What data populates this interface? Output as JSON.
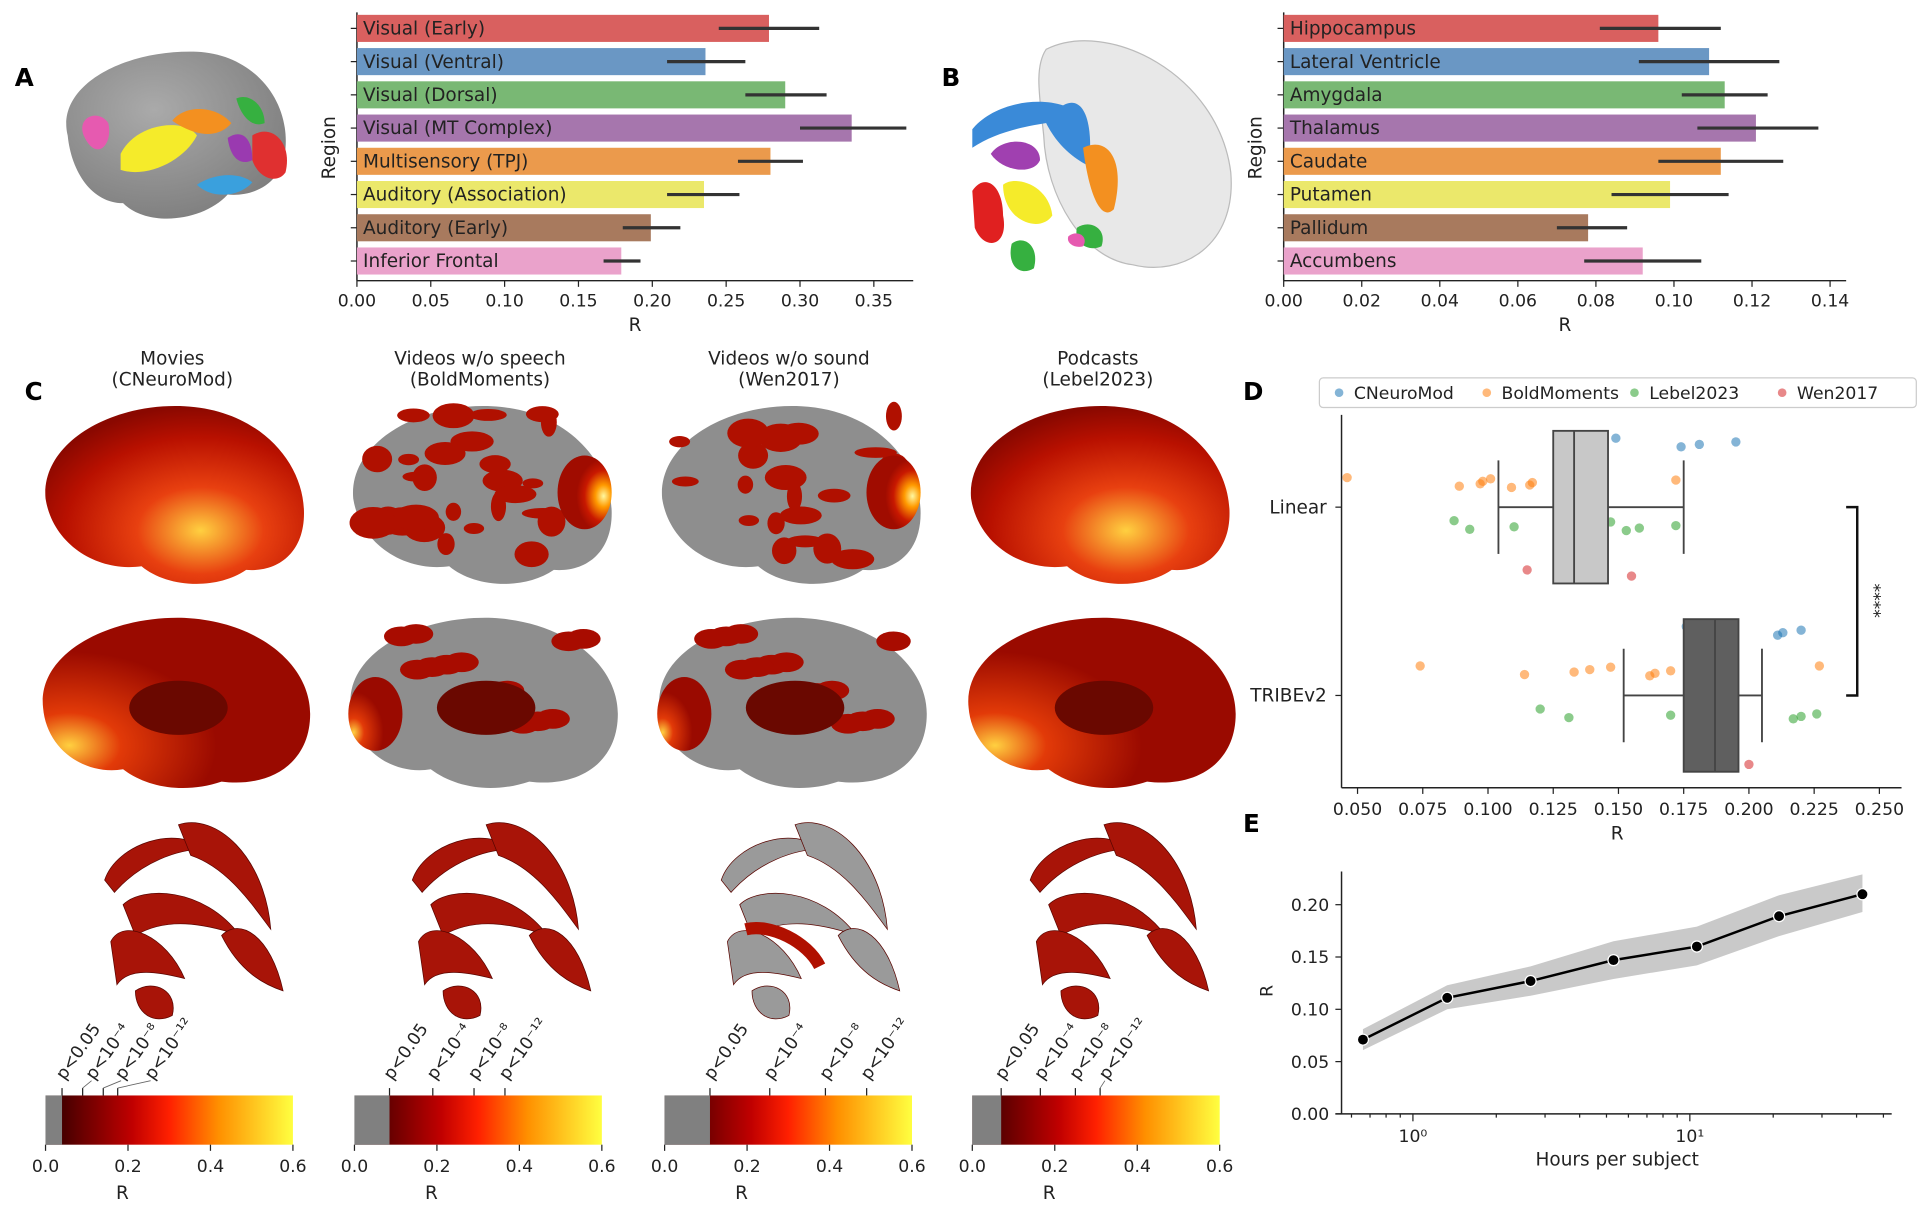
{
  "panels": [
    "A",
    "B",
    "C",
    "D",
    "E"
  ],
  "chart_data": [
    {
      "id": "A",
      "type": "bar",
      "orientation": "horizontal",
      "ylabel": "Region",
      "xlabel": "R",
      "xlim": [
        0,
        0.39
      ],
      "xticks": [
        "0.00",
        "0.05",
        "0.10",
        "0.15",
        "0.20",
        "0.25",
        "0.30",
        "0.35"
      ],
      "categories": [
        "Visual (Early)",
        "Visual (Ventral)",
        "Visual (Dorsal)",
        "Visual (MT Complex)",
        "Multisensory (TPJ)",
        "Auditory (Association)",
        "Auditory (Early)",
        "Inferior Frontal"
      ],
      "values": [
        0.279,
        0.236,
        0.29,
        0.335,
        0.28,
        0.235,
        0.199,
        0.179
      ],
      "error_low": [
        0.245,
        0.21,
        0.263,
        0.3,
        0.258,
        0.21,
        0.18,
        0.167
      ],
      "error_high": [
        0.313,
        0.263,
        0.318,
        0.372,
        0.302,
        0.259,
        0.219,
        0.192
      ],
      "colors": [
        "#d9605f",
        "#6a97c4",
        "#79b874",
        "#a676ad",
        "#eb9a4c",
        "#ebe86b",
        "#a87a5e",
        "#eaa2cb"
      ]
    },
    {
      "id": "B",
      "type": "bar",
      "orientation": "horizontal",
      "ylabel": "Region",
      "xlabel": "R",
      "xlim": [
        0,
        0.144
      ],
      "xticks": [
        "0.00",
        "0.02",
        "0.04",
        "0.06",
        "0.08",
        "0.10",
        "0.12",
        "0.14"
      ],
      "categories": [
        "Hippocampus",
        "Lateral Ventricle",
        "Amygdala",
        "Thalamus",
        "Caudate",
        "Putamen",
        "Pallidum",
        "Accumbens"
      ],
      "values": [
        0.096,
        0.109,
        0.113,
        0.121,
        0.112,
        0.099,
        0.078,
        0.092
      ],
      "error_low": [
        0.081,
        0.091,
        0.102,
        0.106,
        0.096,
        0.084,
        0.07,
        0.077
      ],
      "error_high": [
        0.112,
        0.127,
        0.124,
        0.137,
        0.128,
        0.114,
        0.088,
        0.107
      ],
      "colors": [
        "#d9605f",
        "#6a97c4",
        "#79b874",
        "#a676ad",
        "#eb9a4c",
        "#ebe86b",
        "#a87a5e",
        "#eaa2cb"
      ]
    },
    {
      "id": "C",
      "type": "heatmap",
      "columns": [
        {
          "title1": "Movies",
          "title2": "(CNeuroMod)",
          "thresholds": [
            0.04,
            0.09,
            0.14,
            0.175
          ],
          "coverage": 1.0
        },
        {
          "title1": "Videos w/o speech",
          "title2": "(BoldMoments)",
          "thresholds": [
            0.085,
            0.19,
            0.29,
            0.365
          ],
          "coverage": 0.6
        },
        {
          "title1": "Videos w/o sound",
          "title2": "(Wen2017)",
          "thresholds": [
            0.11,
            0.255,
            0.39,
            0.49
          ],
          "coverage": 0.45
        },
        {
          "title1": "Podcasts",
          "title2": "(Lebel2023)",
          "thresholds": [
            0.07,
            0.165,
            0.25,
            0.31
          ],
          "coverage": 1.0
        }
      ],
      "threshold_labels": [
        "p<0.05",
        "p<10⁻⁴",
        "p<10⁻⁸",
        "p<10⁻¹²"
      ],
      "colorbar": {
        "xlabel": "R",
        "range": [
          0,
          0.6
        ],
        "ticks": [
          "0.0",
          "0.2",
          "0.4",
          "0.6"
        ],
        "colormap": "hot",
        "below_threshold_color": "#808080"
      }
    },
    {
      "id": "D",
      "type": "scatter",
      "overlay": "boxplot",
      "orientation": "horizontal",
      "xlabel": "R",
      "xlim": [
        0.04,
        0.256
      ],
      "xticks": [
        "0.050",
        "0.075",
        "0.100",
        "0.125",
        "0.150",
        "0.175",
        "0.200",
        "0.225",
        "0.250"
      ],
      "categories": [
        "Linear",
        "TRIBEv2"
      ],
      "legend": {
        "placement": "top",
        "entries": [
          "CNeuroMod",
          "BoldMoments",
          "Lebel2023",
          "Wen2017"
        ]
      },
      "series_colors": {
        "CNeuroMod": "#1f77b4",
        "BoldMoments": "#ff7f0e",
        "Lebel2023": "#2ca02c",
        "Wen2017": "#d62728"
      },
      "boxes": [
        {
          "category": "Linear",
          "whisker_low": 0.104,
          "q1": 0.125,
          "median": 0.133,
          "q3": 0.146,
          "whisker_high": 0.175,
          "color": "#c8c8c8"
        },
        {
          "category": "TRIBEv2",
          "whisker_low": 0.152,
          "q1": 0.175,
          "median": 0.187,
          "q3": 0.196,
          "whisker_high": 0.205,
          "color": "#5f5f5f"
        }
      ],
      "points": {
        "Linear": {
          "CNeuroMod": [
            0.149,
            0.174,
            0.181,
            0.195
          ],
          "BoldMoments": [
            0.046,
            0.089,
            0.097,
            0.098,
            0.101,
            0.109,
            0.116,
            0.117,
            0.172
          ],
          "Lebel2023": [
            0.087,
            0.093,
            0.11,
            0.132,
            0.147,
            0.153,
            0.158,
            0.172
          ],
          "Wen2017": [
            0.115,
            0.136,
            0.155
          ]
        },
        "TRIBEv2": {
          "CNeuroMod": [
            0.176,
            0.211,
            0.213,
            0.22
          ],
          "BoldMoments": [
            0.074,
            0.114,
            0.133,
            0.139,
            0.147,
            0.162,
            0.164,
            0.17,
            0.189,
            0.227
          ],
          "Lebel2023": [
            0.12,
            0.131,
            0.17,
            0.186,
            0.186,
            0.217,
            0.22,
            0.226
          ],
          "Wen2017": [
            0.184,
            0.194,
            0.2
          ]
        }
      },
      "significance": "****"
    },
    {
      "id": "E",
      "type": "line",
      "xscale": "log",
      "xlabel": "Hours per subject",
      "ylabel": "R",
      "ylim": [
        0,
        0.235
      ],
      "yticks": [
        "0.00",
        "0.05",
        "0.10",
        "0.15",
        "0.20"
      ],
      "xticks": [
        "10⁰",
        "10¹"
      ],
      "x": [
        0.66,
        1.33,
        2.66,
        5.3,
        10.6,
        21,
        42
      ],
      "y": [
        0.071,
        0.111,
        0.127,
        0.147,
        0.16,
        0.189,
        0.21
      ],
      "ci_low": [
        0.061,
        0.1,
        0.113,
        0.129,
        0.142,
        0.17,
        0.193
      ],
      "ci_high": [
        0.081,
        0.123,
        0.141,
        0.165,
        0.179,
        0.209,
        0.229
      ]
    }
  ]
}
